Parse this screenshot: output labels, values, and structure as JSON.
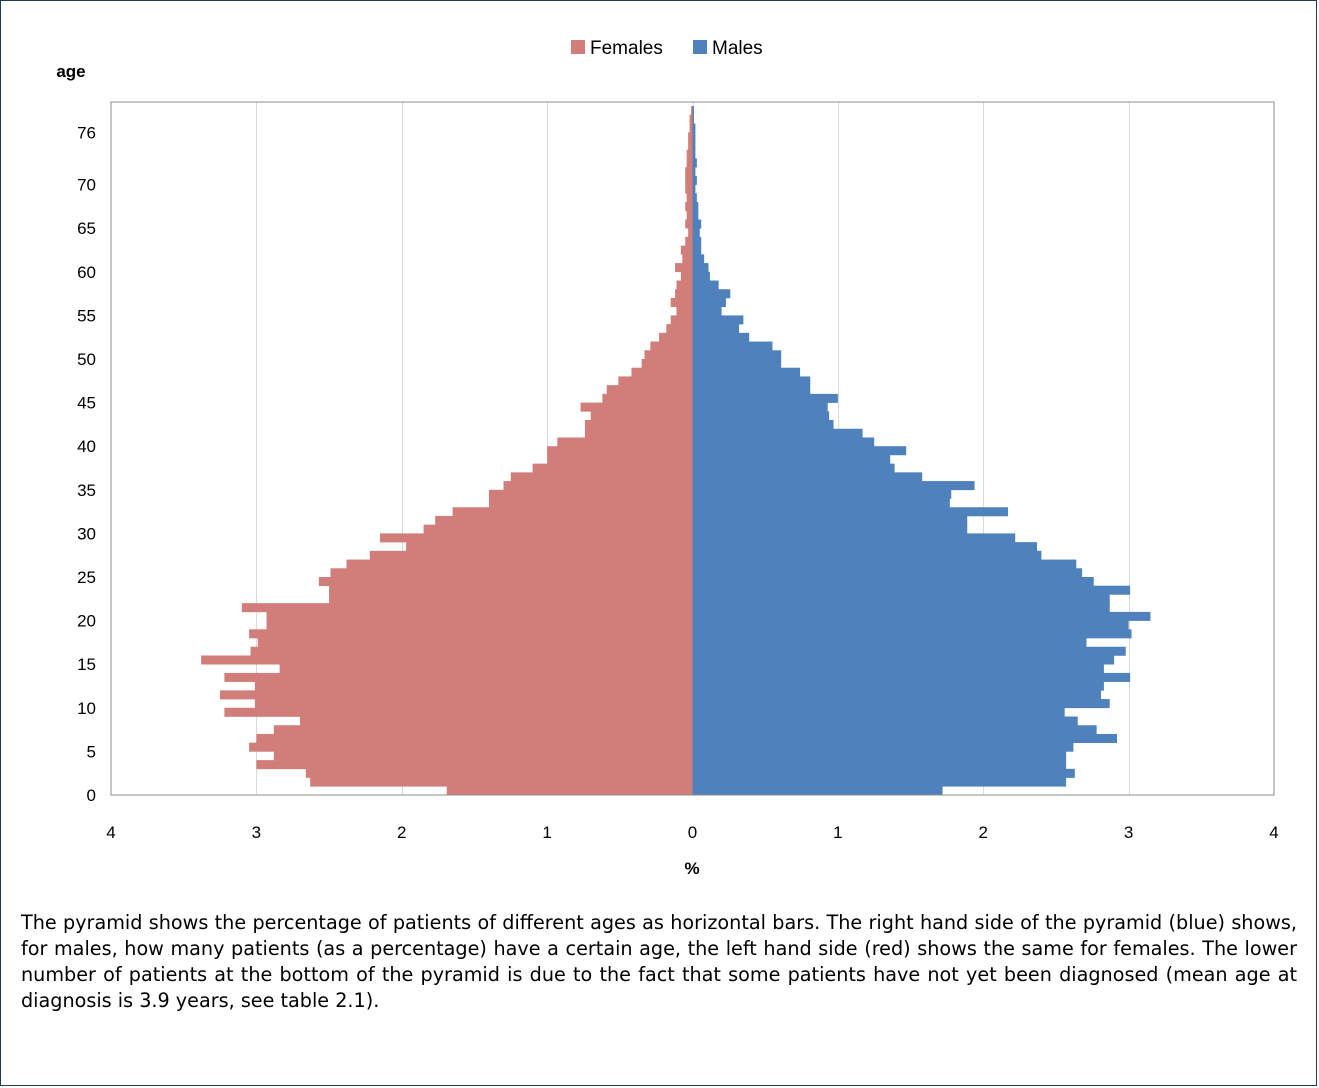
{
  "chart_data": {
    "type": "bar",
    "subtype": "population-pyramid",
    "ylabel": "age",
    "xlabel": "%",
    "xlim": [
      -4,
      4
    ],
    "x_ticks": [
      -4,
      -3,
      -2,
      -1,
      0,
      1,
      2,
      3,
      4
    ],
    "x_tick_labels": [
      "4",
      "3",
      "2",
      "1",
      "0",
      "1",
      "2",
      "3",
      "4"
    ],
    "y_ticks": [
      0,
      5,
      10,
      15,
      20,
      25,
      30,
      35,
      40,
      45,
      50,
      55,
      60,
      65,
      70,
      76
    ],
    "y_tick_labels": [
      "0",
      "5",
      "10",
      "15",
      "20",
      "25",
      "30",
      "35",
      "40",
      "45",
      "50",
      "55",
      "60",
      "65",
      "70",
      "76"
    ],
    "grid": "vertical",
    "legend_position": "top",
    "categories": [
      0,
      1,
      2,
      3,
      4,
      5,
      6,
      7,
      8,
      9,
      10,
      11,
      12,
      13,
      14,
      15,
      16,
      17,
      18,
      19,
      20,
      21,
      22,
      23,
      24,
      25,
      26,
      27,
      28,
      29,
      30,
      31,
      32,
      33,
      34,
      35,
      36,
      37,
      38,
      39,
      40,
      41,
      42,
      43,
      44,
      45,
      46,
      47,
      48,
      49,
      50,
      51,
      52,
      53,
      54,
      55,
      56,
      57,
      58,
      59,
      60,
      61,
      62,
      63,
      64,
      65,
      66,
      67,
      68,
      69,
      70,
      71,
      72,
      73,
      74,
      75,
      76,
      77,
      78
    ],
    "series": [
      {
        "name": "Females",
        "color": "#d17e7a",
        "values": [
          1.69,
          2.63,
          2.66,
          3.0,
          2.88,
          3.05,
          3.0,
          2.88,
          2.7,
          3.22,
          3.01,
          3.25,
          3.01,
          3.22,
          2.84,
          3.38,
          3.04,
          2.99,
          3.05,
          2.93,
          2.93,
          3.1,
          2.5,
          2.5,
          2.57,
          2.49,
          2.38,
          2.22,
          1.97,
          2.15,
          1.85,
          1.77,
          1.65,
          1.4,
          1.4,
          1.3,
          1.25,
          1.1,
          1.0,
          1.0,
          0.93,
          0.74,
          0.74,
          0.7,
          0.77,
          0.62,
          0.59,
          0.51,
          0.42,
          0.35,
          0.33,
          0.29,
          0.23,
          0.18,
          0.15,
          0.11,
          0.15,
          0.12,
          0.11,
          0.08,
          0.12,
          0.07,
          0.08,
          0.05,
          0.03,
          0.05,
          0.04,
          0.05,
          0.04,
          0.05,
          0.05,
          0.05,
          0.04,
          0.04,
          0.03,
          0.03,
          0.02,
          0.02,
          0.01
        ]
      },
      {
        "name": "Males",
        "color": "#4f81bd",
        "values": [
          1.72,
          2.57,
          2.63,
          2.57,
          2.57,
          2.62,
          2.92,
          2.78,
          2.65,
          2.56,
          2.87,
          2.81,
          2.83,
          3.01,
          2.83,
          2.9,
          2.98,
          2.71,
          3.02,
          3.0,
          3.15,
          2.87,
          2.87,
          3.01,
          2.76,
          2.68,
          2.64,
          2.4,
          2.37,
          2.22,
          1.89,
          1.89,
          2.17,
          1.77,
          1.78,
          1.94,
          1.58,
          1.39,
          1.36,
          1.47,
          1.25,
          1.17,
          0.97,
          0.94,
          0.93,
          1.0,
          0.81,
          0.81,
          0.74,
          0.61,
          0.61,
          0.55,
          0.39,
          0.32,
          0.35,
          0.2,
          0.23,
          0.26,
          0.18,
          0.12,
          0.11,
          0.08,
          0.06,
          0.06,
          0.05,
          0.06,
          0.04,
          0.04,
          0.03,
          0.02,
          0.03,
          0.02,
          0.03,
          0.02,
          0.02,
          0.02,
          0.02,
          0.01,
          0.01
        ]
      }
    ]
  },
  "caption": "The pyramid shows the percentage of patients of different ages as horizontal bars. The right hand side of the pyramid (blue) shows, for males, how many patients (as a percentage) have a certain age, the left hand side (red) shows the same for females. The lower number of patients at the bottom of the pyramid is due to the fact that some patients have not yet been diagnosed (mean age at diagnosis is 3.9 years, see table 2.1)."
}
